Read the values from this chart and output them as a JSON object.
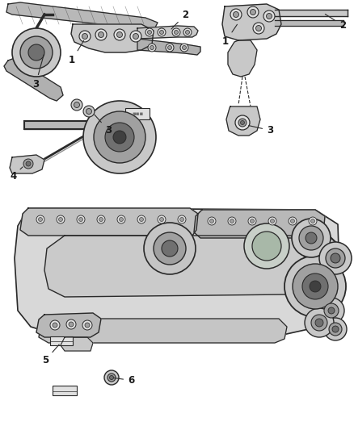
{
  "bg_color": "#ffffff",
  "line_color": "#2a2a2a",
  "label_color": "#1a1a1a",
  "fig_width": 4.38,
  "fig_height": 5.33,
  "dpi": 100,
  "gray_light": "#c8c8c8",
  "gray_mid": "#a0a0a0",
  "gray_dark": "#707070",
  "gray_very_light": "#e0e0e0",
  "gray_darker": "#505050"
}
